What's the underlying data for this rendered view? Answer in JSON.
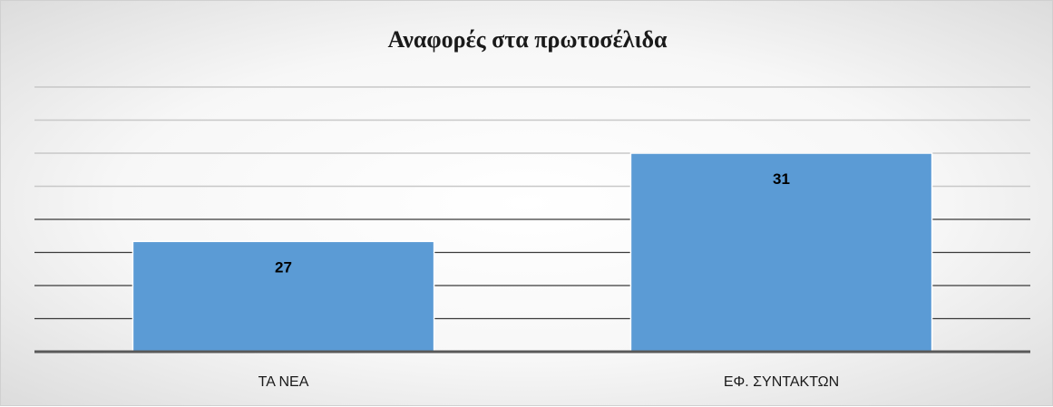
{
  "chart_data": {
    "type": "bar",
    "title": "Αναφορές στα πρωτοσέλιδα",
    "categories": [
      "ΤΑ ΝΕΑ",
      "ΕΦ. ΣΥΝΤΑΚΤΩΝ"
    ],
    "values": [
      27,
      31
    ],
    "ylim": [
      22,
      34
    ],
    "y_gridline_step": 1.5,
    "grid": true,
    "legend": "none",
    "data_labels": true,
    "bar_color": "#5b9bd5",
    "axis_color": "#595959"
  }
}
